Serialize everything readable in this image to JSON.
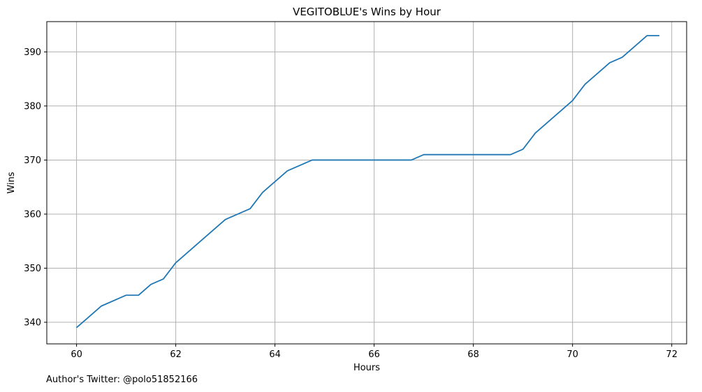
{
  "chart_data": {
    "type": "line",
    "title": "VEGITOBLUE's Wins by Hour",
    "xlabel": "Hours",
    "ylabel": "Wins",
    "xlim": [
      59.4,
      72.3
    ],
    "ylim": [
      336,
      395.6
    ],
    "xticks": [
      60,
      62,
      64,
      66,
      68,
      70,
      72
    ],
    "yticks": [
      340,
      350,
      360,
      370,
      380,
      390
    ],
    "grid": true,
    "line_color": "#1f77b4",
    "series": [
      {
        "x": [
          60.0,
          60.5,
          61.0,
          61.25,
          61.5,
          61.75,
          62.0,
          62.5,
          63.0,
          63.5,
          63.75,
          64.0,
          64.25,
          64.75,
          65.0,
          65.5,
          66.0,
          66.5,
          66.75,
          67.0,
          67.5,
          68.0,
          68.5,
          68.75,
          69.0,
          69.25,
          69.5,
          69.75,
          70.0,
          70.25,
          70.5,
          70.75,
          71.0,
          71.25,
          71.5,
          71.75
        ],
        "y": [
          339,
          343,
          345,
          345,
          347,
          348,
          351,
          355,
          359,
          361,
          364,
          366,
          368,
          370,
          370,
          370,
          370,
          370,
          370,
          371,
          371,
          371,
          371,
          371,
          372,
          375,
          377,
          379,
          381,
          384,
          386,
          388,
          389,
          391,
          393,
          393
        ]
      }
    ]
  },
  "footer": {
    "author_text": "Author's Twitter: @polo51852166"
  }
}
